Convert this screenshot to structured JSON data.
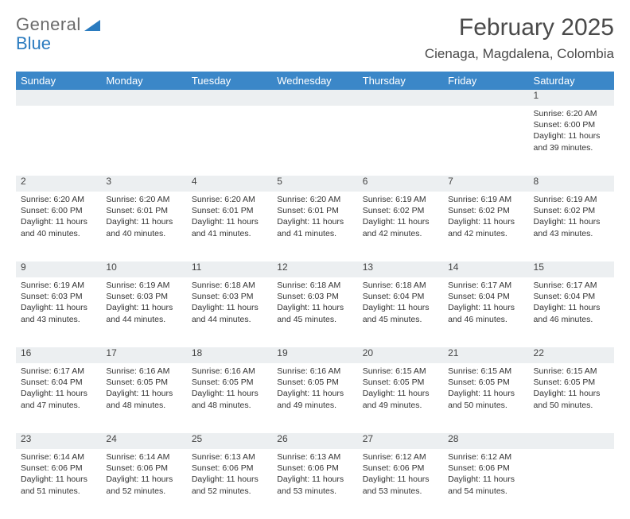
{
  "brand": {
    "general": "General",
    "blue": "Blue"
  },
  "title": "February 2025",
  "location": "Cienaga, Magdalena, Colombia",
  "colors": {
    "header_bg": "#3b87c8",
    "header_fg": "#ffffff",
    "daynum_bg": "#eceff1",
    "text": "#333333",
    "brand_gray": "#6a6a6a",
    "brand_blue": "#2a7bbf"
  },
  "weekdays": [
    "Sunday",
    "Monday",
    "Tuesday",
    "Wednesday",
    "Thursday",
    "Friday",
    "Saturday"
  ],
  "weeks": [
    {
      "nums": [
        "",
        "",
        "",
        "",
        "",
        "",
        "1"
      ],
      "cells": [
        null,
        null,
        null,
        null,
        null,
        null,
        {
          "sunrise": "Sunrise: 6:20 AM",
          "sunset": "Sunset: 6:00 PM",
          "day1": "Daylight: 11 hours",
          "day2": "and 39 minutes."
        }
      ]
    },
    {
      "nums": [
        "2",
        "3",
        "4",
        "5",
        "6",
        "7",
        "8"
      ],
      "cells": [
        {
          "sunrise": "Sunrise: 6:20 AM",
          "sunset": "Sunset: 6:00 PM",
          "day1": "Daylight: 11 hours",
          "day2": "and 40 minutes."
        },
        {
          "sunrise": "Sunrise: 6:20 AM",
          "sunset": "Sunset: 6:01 PM",
          "day1": "Daylight: 11 hours",
          "day2": "and 40 minutes."
        },
        {
          "sunrise": "Sunrise: 6:20 AM",
          "sunset": "Sunset: 6:01 PM",
          "day1": "Daylight: 11 hours",
          "day2": "and 41 minutes."
        },
        {
          "sunrise": "Sunrise: 6:20 AM",
          "sunset": "Sunset: 6:01 PM",
          "day1": "Daylight: 11 hours",
          "day2": "and 41 minutes."
        },
        {
          "sunrise": "Sunrise: 6:19 AM",
          "sunset": "Sunset: 6:02 PM",
          "day1": "Daylight: 11 hours",
          "day2": "and 42 minutes."
        },
        {
          "sunrise": "Sunrise: 6:19 AM",
          "sunset": "Sunset: 6:02 PM",
          "day1": "Daylight: 11 hours",
          "day2": "and 42 minutes."
        },
        {
          "sunrise": "Sunrise: 6:19 AM",
          "sunset": "Sunset: 6:02 PM",
          "day1": "Daylight: 11 hours",
          "day2": "and 43 minutes."
        }
      ]
    },
    {
      "nums": [
        "9",
        "10",
        "11",
        "12",
        "13",
        "14",
        "15"
      ],
      "cells": [
        {
          "sunrise": "Sunrise: 6:19 AM",
          "sunset": "Sunset: 6:03 PM",
          "day1": "Daylight: 11 hours",
          "day2": "and 43 minutes."
        },
        {
          "sunrise": "Sunrise: 6:19 AM",
          "sunset": "Sunset: 6:03 PM",
          "day1": "Daylight: 11 hours",
          "day2": "and 44 minutes."
        },
        {
          "sunrise": "Sunrise: 6:18 AM",
          "sunset": "Sunset: 6:03 PM",
          "day1": "Daylight: 11 hours",
          "day2": "and 44 minutes."
        },
        {
          "sunrise": "Sunrise: 6:18 AM",
          "sunset": "Sunset: 6:03 PM",
          "day1": "Daylight: 11 hours",
          "day2": "and 45 minutes."
        },
        {
          "sunrise": "Sunrise: 6:18 AM",
          "sunset": "Sunset: 6:04 PM",
          "day1": "Daylight: 11 hours",
          "day2": "and 45 minutes."
        },
        {
          "sunrise": "Sunrise: 6:17 AM",
          "sunset": "Sunset: 6:04 PM",
          "day1": "Daylight: 11 hours",
          "day2": "and 46 minutes."
        },
        {
          "sunrise": "Sunrise: 6:17 AM",
          "sunset": "Sunset: 6:04 PM",
          "day1": "Daylight: 11 hours",
          "day2": "and 46 minutes."
        }
      ]
    },
    {
      "nums": [
        "16",
        "17",
        "18",
        "19",
        "20",
        "21",
        "22"
      ],
      "cells": [
        {
          "sunrise": "Sunrise: 6:17 AM",
          "sunset": "Sunset: 6:04 PM",
          "day1": "Daylight: 11 hours",
          "day2": "and 47 minutes."
        },
        {
          "sunrise": "Sunrise: 6:16 AM",
          "sunset": "Sunset: 6:05 PM",
          "day1": "Daylight: 11 hours",
          "day2": "and 48 minutes."
        },
        {
          "sunrise": "Sunrise: 6:16 AM",
          "sunset": "Sunset: 6:05 PM",
          "day1": "Daylight: 11 hours",
          "day2": "and 48 minutes."
        },
        {
          "sunrise": "Sunrise: 6:16 AM",
          "sunset": "Sunset: 6:05 PM",
          "day1": "Daylight: 11 hours",
          "day2": "and 49 minutes."
        },
        {
          "sunrise": "Sunrise: 6:15 AM",
          "sunset": "Sunset: 6:05 PM",
          "day1": "Daylight: 11 hours",
          "day2": "and 49 minutes."
        },
        {
          "sunrise": "Sunrise: 6:15 AM",
          "sunset": "Sunset: 6:05 PM",
          "day1": "Daylight: 11 hours",
          "day2": "and 50 minutes."
        },
        {
          "sunrise": "Sunrise: 6:15 AM",
          "sunset": "Sunset: 6:05 PM",
          "day1": "Daylight: 11 hours",
          "day2": "and 50 minutes."
        }
      ]
    },
    {
      "nums": [
        "23",
        "24",
        "25",
        "26",
        "27",
        "28",
        ""
      ],
      "cells": [
        {
          "sunrise": "Sunrise: 6:14 AM",
          "sunset": "Sunset: 6:06 PM",
          "day1": "Daylight: 11 hours",
          "day2": "and 51 minutes."
        },
        {
          "sunrise": "Sunrise: 6:14 AM",
          "sunset": "Sunset: 6:06 PM",
          "day1": "Daylight: 11 hours",
          "day2": "and 52 minutes."
        },
        {
          "sunrise": "Sunrise: 6:13 AM",
          "sunset": "Sunset: 6:06 PM",
          "day1": "Daylight: 11 hours",
          "day2": "and 52 minutes."
        },
        {
          "sunrise": "Sunrise: 6:13 AM",
          "sunset": "Sunset: 6:06 PM",
          "day1": "Daylight: 11 hours",
          "day2": "and 53 minutes."
        },
        {
          "sunrise": "Sunrise: 6:12 AM",
          "sunset": "Sunset: 6:06 PM",
          "day1": "Daylight: 11 hours",
          "day2": "and 53 minutes."
        },
        {
          "sunrise": "Sunrise: 6:12 AM",
          "sunset": "Sunset: 6:06 PM",
          "day1": "Daylight: 11 hours",
          "day2": "and 54 minutes."
        },
        null
      ]
    }
  ]
}
